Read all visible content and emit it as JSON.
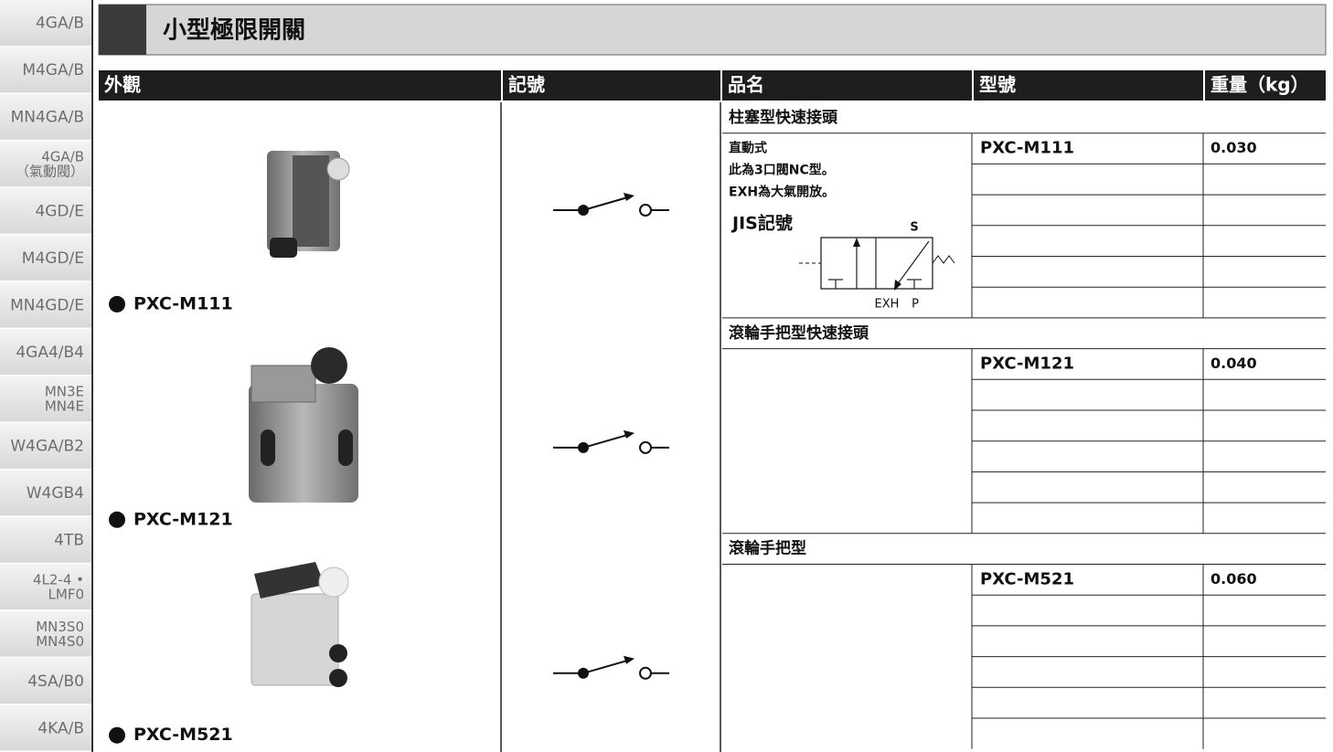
{
  "sidebar": {
    "tabs": [
      [
        "4GA/B"
      ],
      [
        "M4GA/B"
      ],
      [
        "MN4GA/B"
      ],
      [
        "4GA/B",
        "（氣動閥）"
      ],
      [
        "4GD/E"
      ],
      [
        "M4GD/E"
      ],
      [
        "MN4GD/E"
      ],
      [
        "4GA4/B4"
      ],
      [
        "MN3E",
        "MN4E"
      ],
      [
        "W4GA/B2"
      ],
      [
        "W4GB4"
      ],
      [
        "4TB"
      ],
      [
        "4L2-4 •",
        "LMF0"
      ],
      [
        "MN3S0",
        "MN4S0"
      ],
      [
        "4SA/B0"
      ],
      [
        "4KA/B"
      ]
    ]
  },
  "header": {
    "title": "小型極限開關"
  },
  "table": {
    "columns": [
      "外觀",
      "記號",
      "品名",
      "型號",
      "重量（kg）"
    ],
    "sections": [
      {
        "name": "柱塞型快速接頭",
        "product": "PXC-M111",
        "model": "PXC-M111",
        "weight": "0.030",
        "notes": [
          "直動式",
          "此為3口閥NC型。",
          "EXH為大氣開放。"
        ],
        "symbol": {
          "title": "JIS記號",
          "labels": [
            "S",
            "EXH",
            "P"
          ]
        }
      },
      {
        "name": "滾輪手把型快速接頭",
        "product": "PXC-M121",
        "model": "PXC-M121",
        "weight": "0.040"
      },
      {
        "name": "滾輪手把型",
        "product": "PXC-M521",
        "model": "PXC-M521",
        "weight": "0.060"
      }
    ]
  }
}
